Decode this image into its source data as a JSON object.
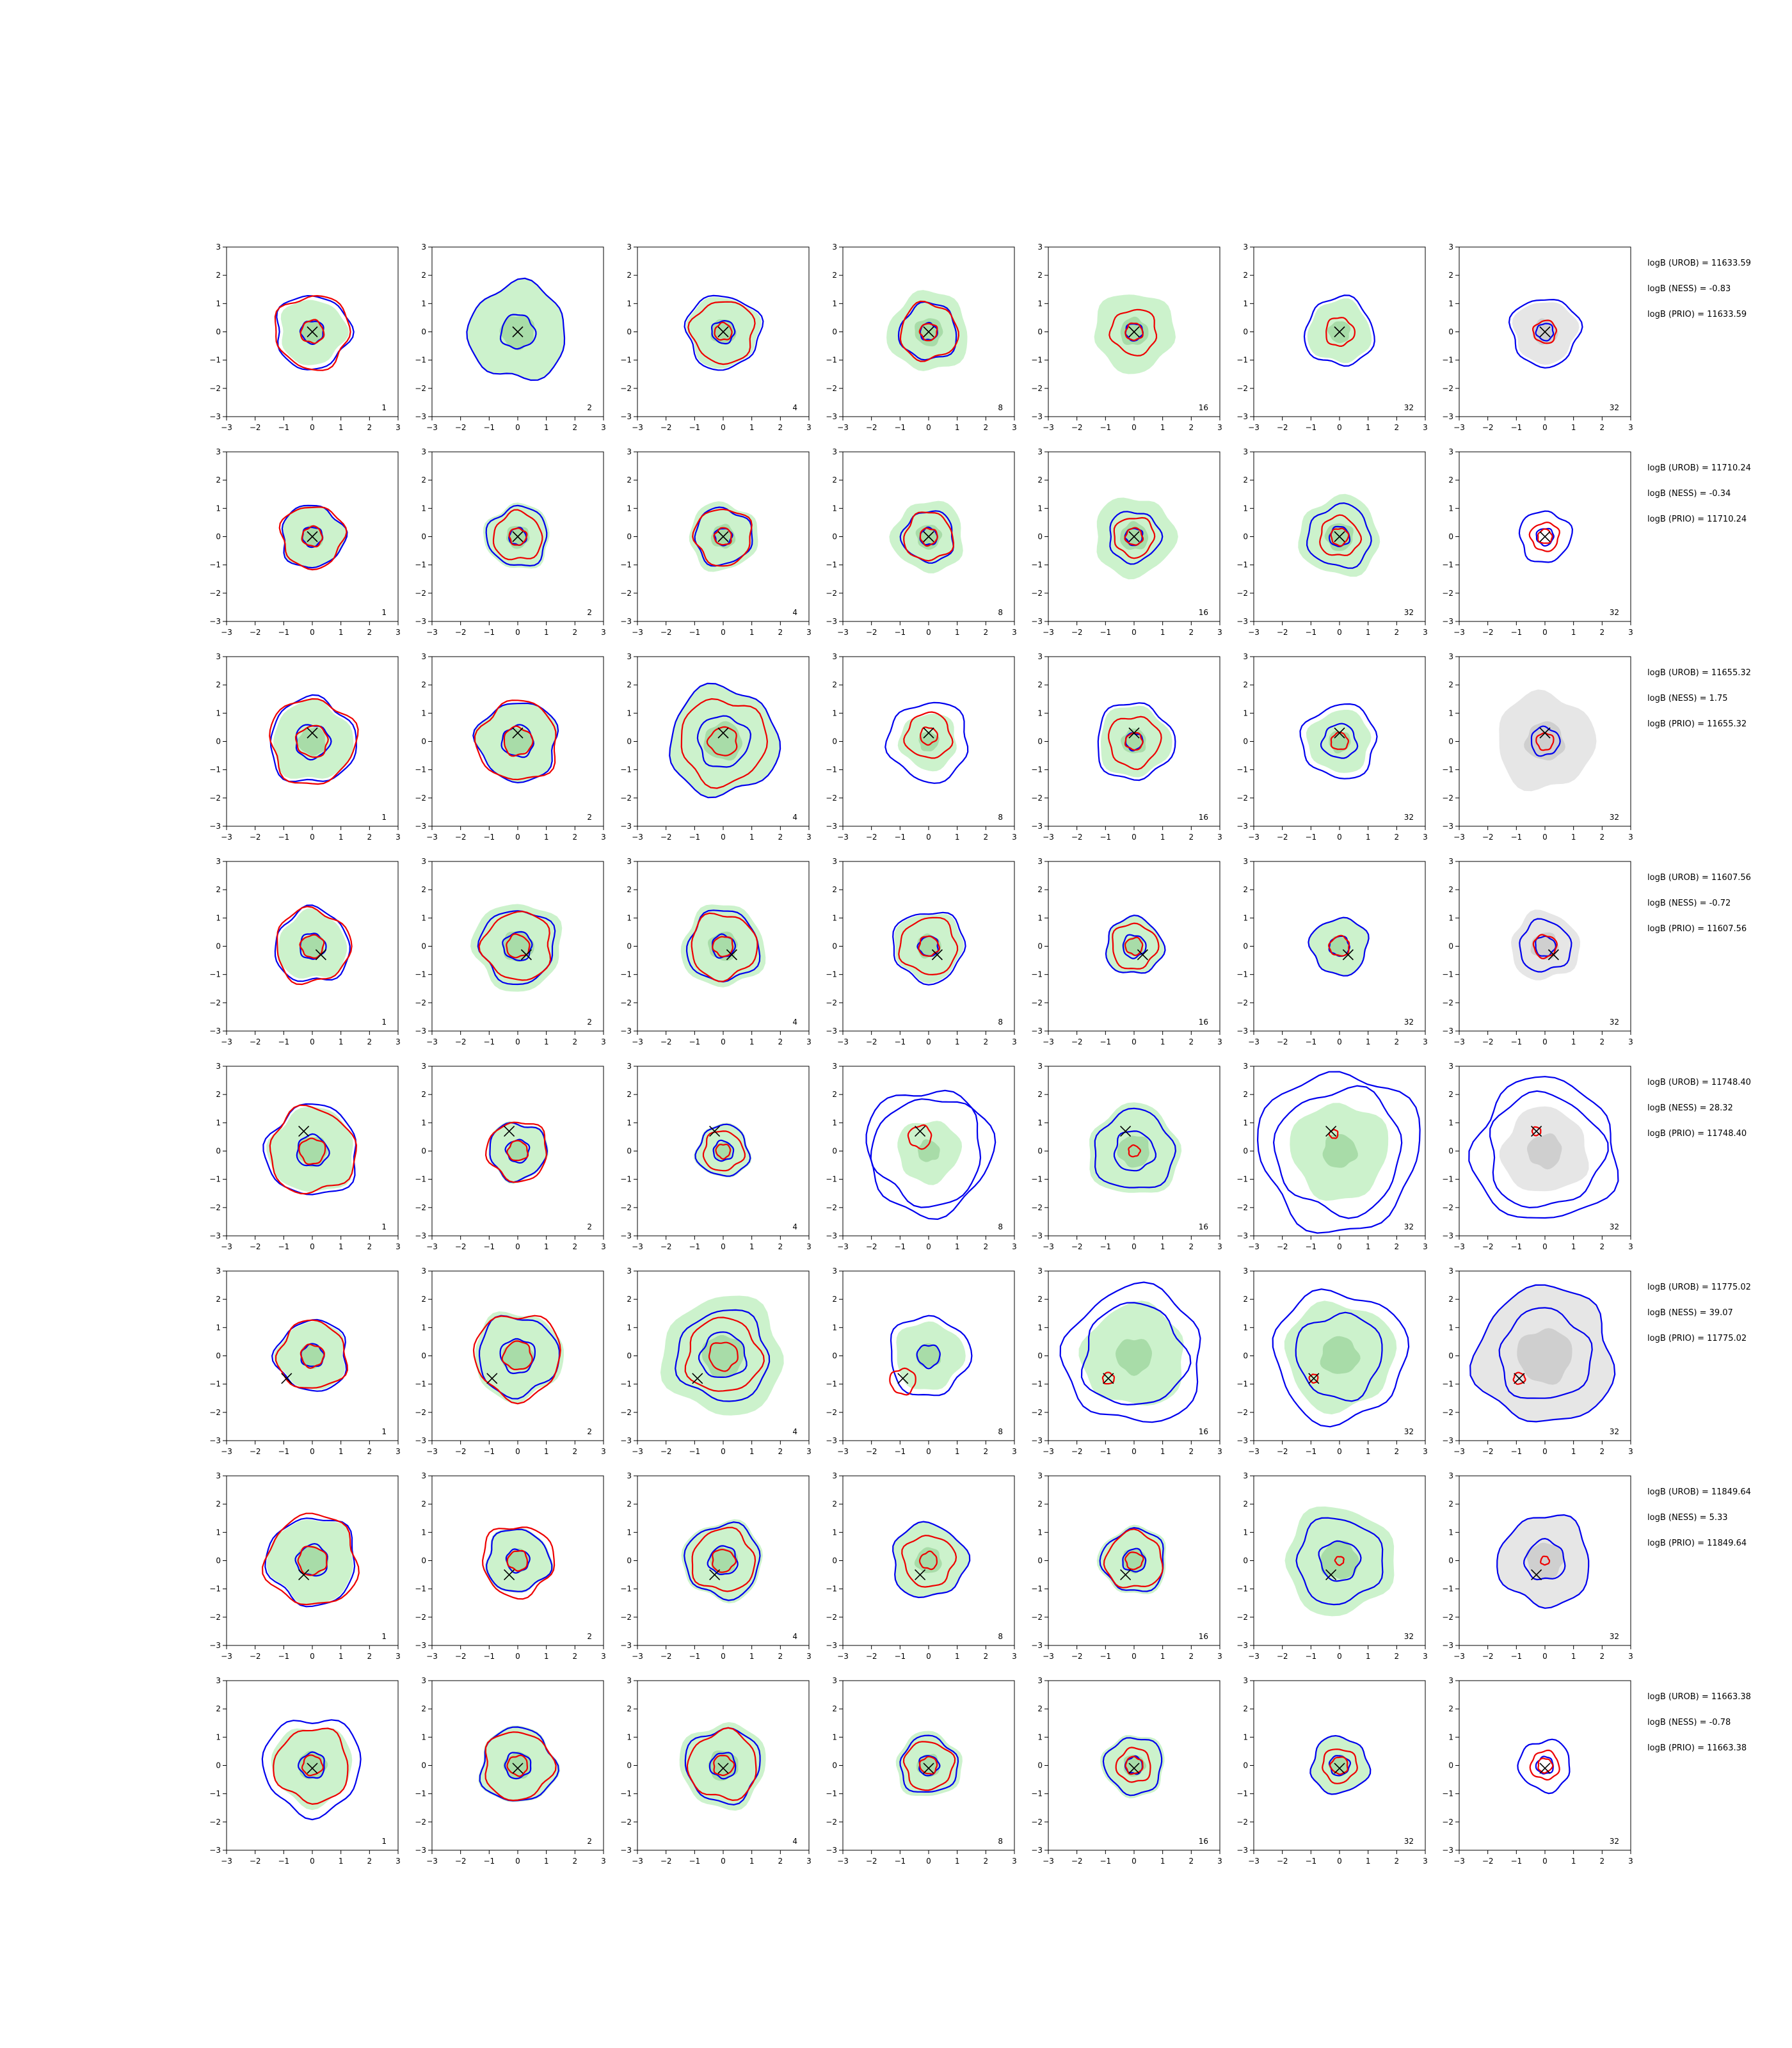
{
  "chart_data": {
    "type": "contour-grid",
    "xlim": [
      -3,
      3
    ],
    "ylim": [
      -3,
      3
    ],
    "ticks": [
      -3,
      -2,
      -1,
      0,
      1,
      2,
      3
    ],
    "tick_labels": [
      "−3",
      "−2",
      "−1",
      "0",
      "1",
      "2",
      "3"
    ],
    "grid": false,
    "column_labels": [
      "1",
      "2",
      "4",
      "8",
      "16",
      "32",
      "32"
    ],
    "colors": {
      "blue_contour": "#0000ee",
      "red_contour": "#ee0000",
      "green_fill": "#ccf2cc",
      "green_fill_inner": "#a8dca8",
      "grey_fill": "#e6e6e6",
      "grey_fill_inner": "#cfcfcf",
      "marker": "#000000"
    },
    "rows": [
      {
        "marker": [
          0.0,
          0.0
        ],
        "stats": [
          "logB (UROB) = 11633.59",
          "logB (NESS) = -0.83",
          "logB (PRIO) = 11633.59"
        ],
        "panels": [
          {
            "green": 1.15,
            "blue": [
              1.3,
              0.4
            ],
            "red": [
              1.3,
              0.4
            ],
            "cx": 0.0,
            "cy": 0.0
          },
          {
            "green": 1.7,
            "blue": [
              1.7,
              0.6
            ],
            "red": null,
            "cx": 0.3,
            "cy": 0.3
          },
          {
            "green": 1.25,
            "blue": [
              1.3,
              0.4
            ],
            "red": [
              1.1,
              0.3
            ],
            "cx": 0.0,
            "cy": 0.0
          },
          {
            "green": 1.4,
            "blue": [
              1.0,
              0.3
            ],
            "red": [
              1.0,
              0.3
            ],
            "cx": 0.0,
            "cy": 0.0
          },
          {
            "green": 1.4,
            "blue": [
              0.3
            ],
            "red": [
              0.8,
              0.3
            ],
            "cx": 0.0,
            "cy": 0.0
          },
          {
            "green": 1.1,
            "blue": [
              1.2
            ],
            "red": [
              0.5
            ],
            "cx": 0.0,
            "cy": 0.0
          },
          {
            "grey": 1.1,
            "blue": [
              1.2,
              0.3
            ],
            "red": [
              0.4
            ],
            "cx": 0.0,
            "cy": 0.0
          }
        ]
      },
      {
        "marker": [
          0.0,
          0.0
        ],
        "stats": [
          "logB (UROB) = 11710.24",
          "logB (NESS) = -0.34",
          "logB (PRIO) = 11710.24"
        ],
        "panels": [
          {
            "green": 1.1,
            "blue": [
              1.1,
              0.35
            ],
            "red": [
              1.1,
              0.35
            ],
            "cx": 0.0,
            "cy": 0.0
          },
          {
            "green": 1.15,
            "blue": [
              1.05,
              0.3
            ],
            "red": [
              0.85,
              0.3
            ],
            "cx": 0.0,
            "cy": 0.0
          },
          {
            "green": 1.2,
            "blue": [
              1.0,
              0.3
            ],
            "red": [
              1.0,
              0.3
            ],
            "cx": 0.0,
            "cy": 0.0
          },
          {
            "green": 1.25,
            "blue": [
              0.9,
              0.3
            ],
            "red": [
              0.85,
              0.3
            ],
            "cx": 0.0,
            "cy": 0.0
          },
          {
            "green": 1.4,
            "blue": [
              0.9,
              0.3
            ],
            "red": [
              0.7,
              0.3
            ],
            "cx": 0.0,
            "cy": 0.0
          },
          {
            "green": 1.4,
            "blue": [
              1.1,
              0.35
            ],
            "red": [
              0.7,
              0.3
            ],
            "cx": 0.0,
            "cy": 0.0
          },
          {
            "green": 0.0,
            "blue": [
              0.9,
              0.3
            ],
            "red": [
              0.5,
              0.25
            ],
            "cx": 0.0,
            "cy": 0.0
          }
        ]
      },
      {
        "marker": [
          0.0,
          0.3
        ],
        "stats": [
          "logB (UROB) = 11655.32",
          "logB (NESS) = 1.75",
          "logB (PRIO) = 11655.32"
        ],
        "panels": [
          {
            "green": 1.4,
            "blue": [
              1.5,
              0.6
            ],
            "red": [
              1.5,
              0.55
            ],
            "cx": 0.0,
            "cy": 0.0
          },
          {
            "green": 1.4,
            "blue": [
              1.4,
              0.55
            ],
            "red": [
              1.4,
              0.5
            ],
            "cx": 0.0,
            "cy": 0.0
          },
          {
            "green": 1.9,
            "blue": [
              1.9,
              0.9
            ],
            "red": [
              1.5,
              0.5
            ],
            "cx": 0.0,
            "cy": 0.0
          },
          {
            "green": 1.0,
            "blue": [
              1.4
            ],
            "red": [
              0.8,
              0.3
            ],
            "cx": 0.0,
            "cy": 0.2
          },
          {
            "green": 1.25,
            "blue": [
              1.35,
              0.3
            ],
            "red": [
              0.9,
              0.3
            ],
            "cx": 0.0,
            "cy": 0.0
          },
          {
            "green": 1.1,
            "blue": [
              1.3,
              0.6
            ],
            "red": [
              0.3
            ],
            "cx": 0.0,
            "cy": 0.0
          },
          {
            "grey": 1.7,
            "blue": [
              0.5
            ],
            "red": [
              0.3
            ],
            "cx": 0.0,
            "cy": 0.0
          }
        ]
      },
      {
        "marker": [
          0.3,
          -0.3
        ],
        "stats": [
          "logB (UROB) = 11607.56",
          "logB (NESS) = -0.72",
          "logB (PRIO) = 11607.56"
        ],
        "panels": [
          {
            "green": 1.2,
            "blue": [
              1.3,
              0.45
            ],
            "red": [
              1.3,
              0.4
            ],
            "cx": 0.0,
            "cy": 0.0
          },
          {
            "green": 1.55,
            "blue": [
              1.3,
              0.5
            ],
            "red": [
              1.2,
              0.4
            ],
            "cx": 0.0,
            "cy": 0.0
          },
          {
            "green": 1.45,
            "blue": [
              1.25,
              0.4
            ],
            "red": [
              1.15,
              0.35
            ],
            "cx": 0.0,
            "cy": 0.0
          },
          {
            "green": 1.2,
            "blue": [
              1.25,
              0.35
            ],
            "red": [
              1.0,
              0.35
            ],
            "cx": 0.0,
            "cy": 0.0
          },
          {
            "green": 1.0,
            "blue": [
              1.0,
              0.4
            ],
            "red": [
              0.8,
              0.3
            ],
            "cx": 0.0,
            "cy": 0.0
          },
          {
            "green": 1.0,
            "blue": [
              1.0,
              0.35
            ],
            "red": [
              0.35
            ],
            "cx": 0.0,
            "cy": 0.0
          },
          {
            "grey": 1.2,
            "blue": [
              0.9,
              0.35
            ],
            "red": [
              0.4
            ],
            "cx": 0.0,
            "cy": 0.0
          }
        ]
      },
      {
        "marker": [
          -0.3,
          0.7
        ],
        "stats": [
          "logB (UROB) = 11748.40",
          "logB (NESS) = 28.32",
          "logB (PRIO) = 11748.40"
        ],
        "panels": [
          {
            "green": 1.5,
            "blue": [
              1.6,
              0.55
            ],
            "red": [
              1.5,
              0.45
            ],
            "cx": 0.0,
            "cy": 0.0
          },
          {
            "green": 1.05,
            "blue": [
              1.0,
              0.4
            ],
            "red": [
              1.05,
              0.35
            ],
            "cx": 0.0,
            "cy": 0.0
          },
          {
            "green": 0.95,
            "blue": [
              0.9,
              0.35
            ],
            "red": [
              0.7,
              0.25
            ],
            "cx": 0.0,
            "cy": 0.0
          },
          {
            "green": 1.1,
            "blue": [
              2.2,
              1.9
            ],
            "red": [
              0.4
            ],
            "cx": -0.3,
            "cy": 0.5
          },
          {
            "green": 1.6,
            "blue": [
              1.4,
              0.7
            ],
            "red": [
              0.2
            ],
            "cx": 0.0,
            "cy": 0.0
          },
          {
            "green": 1.7,
            "blue": [
              2.8,
              2.2
            ],
            "red": [
              0.15
            ],
            "cx": -0.2,
            "cy": 0.6
          },
          {
            "grey": 1.5,
            "blue": [
              2.5,
              2.0
            ],
            "red": [
              0.15
            ],
            "cx": -0.3,
            "cy": 0.7
          }
        ]
      },
      {
        "marker": [
          -0.9,
          -0.8
        ],
        "stats": [
          "logB (UROB) = 11775.02",
          "logB (NESS) = 39.07",
          "logB (PRIO) = 11775.02"
        ],
        "panels": [
          {
            "green": 1.2,
            "blue": [
              1.25,
              0.4
            ],
            "red": [
              1.2,
              0.4
            ],
            "cx": 0.0,
            "cy": 0.0
          },
          {
            "green": 1.55,
            "blue": [
              1.4,
              0.6
            ],
            "red": [
              1.5,
              0.5
            ],
            "cx": 0.0,
            "cy": 0.0
          },
          {
            "green": 2.1,
            "blue": [
              1.6,
              0.8
            ],
            "red": [
              1.3,
              0.5
            ],
            "cx": 0.0,
            "cy": 0.0
          },
          {
            "green": 1.2,
            "blue": [
              1.4,
              0.4
            ],
            "red": [
              0.45
            ],
            "cx": -0.9,
            "cy": -0.9
          },
          {
            "green": 1.8,
            "blue": [
              2.4,
              1.8
            ],
            "red": [
              0.2
            ],
            "cx": -0.9,
            "cy": -0.8
          },
          {
            "green": 1.9,
            "blue": [
              2.3,
              1.5
            ],
            "red": [
              0.15
            ],
            "cx": -0.9,
            "cy": -0.8
          },
          {
            "grey": 2.4,
            "blue": [
              2.4,
              1.6
            ],
            "red": [
              0.2
            ],
            "cx": -0.9,
            "cy": -0.8
          }
        ]
      },
      {
        "marker": [
          -0.3,
          -0.5
        ],
        "stats": [
          "logB (UROB) = 11849.64",
          "logB (NESS) = 5.33",
          "logB (PRIO) = 11849.64"
        ],
        "panels": [
          {
            "green": 1.5,
            "blue": [
              1.55,
              0.55
            ],
            "red": [
              1.6,
              0.5
            ],
            "cx": 0.0,
            "cy": 0.0
          },
          {
            "green": 1.15,
            "blue": [
              1.1,
              0.4
            ],
            "red": [
              1.25,
              0.35
            ],
            "cx": 0.0,
            "cy": 0.0
          },
          {
            "green": 1.4,
            "blue": [
              1.3,
              0.5
            ],
            "red": [
              1.1,
              0.4
            ],
            "cx": 0.0,
            "cy": 0.0
          },
          {
            "green": 1.3,
            "blue": [
              1.3
            ],
            "red": [
              0.9,
              0.3
            ],
            "cx": 0.0,
            "cy": 0.0
          },
          {
            "green": 1.2,
            "blue": [
              1.1,
              0.4
            ],
            "red": [
              1.0,
              0.3
            ],
            "cx": 0.0,
            "cy": 0.0
          },
          {
            "green": 1.9,
            "blue": [
              1.5,
              0.7
            ],
            "red": [
              0.15
            ],
            "cx": 0.0,
            "cy": 0.0
          },
          {
            "grey": 1.6,
            "blue": [
              1.6,
              0.7
            ],
            "red": [
              0.15
            ],
            "cx": 0.0,
            "cy": 0.0
          }
        ]
      },
      {
        "marker": [
          0.0,
          -0.1
        ],
        "stats": [
          "logB (UROB) = 11663.38",
          "logB (NESS) = -0.78",
          "logB (PRIO) = 11663.38"
        ],
        "panels": [
          {
            "green": 1.4,
            "blue": [
              1.7,
              0.45
            ],
            "red": [
              1.3,
              0.35
            ],
            "cx": 0.0,
            "cy": 0.0
          },
          {
            "green": 1.35,
            "blue": [
              1.3,
              0.45
            ],
            "red": [
              1.2,
              0.35
            ],
            "cx": 0.0,
            "cy": 0.0
          },
          {
            "green": 1.5,
            "blue": [
              1.3,
              0.45
            ],
            "red": [
              1.2,
              0.35
            ],
            "cx": 0.0,
            "cy": 0.0
          },
          {
            "green": 1.15,
            "blue": [
              1.0,
              0.35
            ],
            "red": [
              0.85,
              0.3
            ],
            "cx": 0.0,
            "cy": 0.0
          },
          {
            "green": 1.1,
            "blue": [
              1.0,
              0.3
            ],
            "red": [
              0.6,
              0.3
            ],
            "cx": 0.0,
            "cy": 0.0
          },
          {
            "green": 1.0,
            "blue": [
              1.0,
              0.35
            ],
            "red": [
              0.6,
              0.3
            ],
            "cx": 0.0,
            "cy": 0.0
          },
          {
            "green": 0.0,
            "blue": [
              0.9,
              0.3
            ],
            "red": [
              0.5,
              0.25
            ],
            "cx": 0.0,
            "cy": 0.0
          }
        ]
      }
    ]
  }
}
